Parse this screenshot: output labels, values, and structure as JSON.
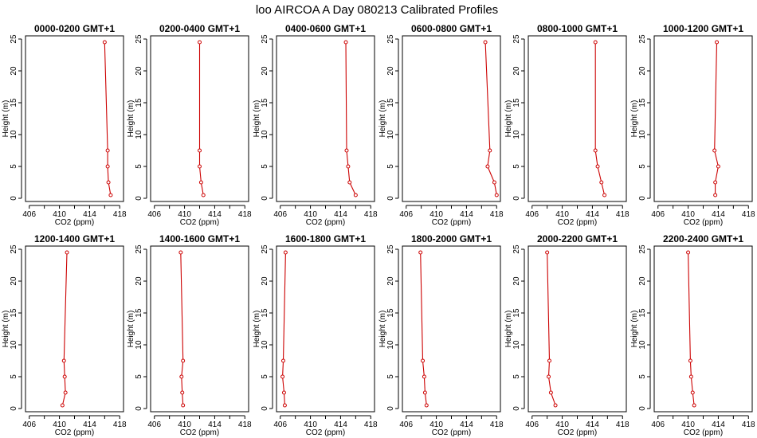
{
  "title": "loo AIRCOA A  Day 080213  Calibrated Profiles",
  "series_color": "#cc0000",
  "chart_data": [
    {
      "type": "line",
      "title": "0000-0200 GMT+1",
      "xlabel": "CO2 (ppm)",
      "ylabel": "Height (m)",
      "xlim": [
        405.5,
        418.5
      ],
      "ylim": [
        -0.5,
        25.5
      ],
      "xticks": [
        406,
        408,
        410,
        412,
        414,
        416,
        418
      ],
      "yticks": [
        0,
        5,
        10,
        15,
        20,
        25
      ],
      "points": [
        {
          "x": 416.8,
          "y": 0.5
        },
        {
          "x": 416.5,
          "y": 2.5
        },
        {
          "x": 416.4,
          "y": 5
        },
        {
          "x": 416.4,
          "y": 7.5
        },
        {
          "x": 416.0,
          "y": 24.5
        }
      ]
    },
    {
      "type": "line",
      "title": "0200-0400 GMT+1",
      "xlabel": "CO2 (ppm)",
      "ylabel": "Height (m)",
      "xlim": [
        405.5,
        418.5
      ],
      "ylim": [
        -0.5,
        25.5
      ],
      "xticks": [
        406,
        408,
        410,
        412,
        414,
        416,
        418
      ],
      "yticks": [
        0,
        5,
        10,
        15,
        20,
        25
      ],
      "points": [
        {
          "x": 412.5,
          "y": 0.5
        },
        {
          "x": 412.2,
          "y": 2.5
        },
        {
          "x": 412.0,
          "y": 5
        },
        {
          "x": 412.0,
          "y": 7.5
        },
        {
          "x": 412.0,
          "y": 24.5
        }
      ]
    },
    {
      "type": "line",
      "title": "0400-0600 GMT+1",
      "xlabel": "CO2 (ppm)",
      "ylabel": "Height (m)",
      "xlim": [
        405.5,
        418.5
      ],
      "ylim": [
        -0.5,
        25.5
      ],
      "xticks": [
        406,
        408,
        410,
        412,
        414,
        416,
        418
      ],
      "yticks": [
        0,
        5,
        10,
        15,
        20,
        25
      ],
      "points": [
        {
          "x": 416.0,
          "y": 0.5
        },
        {
          "x": 415.2,
          "y": 2.5
        },
        {
          "x": 415.0,
          "y": 5
        },
        {
          "x": 414.8,
          "y": 7.5
        },
        {
          "x": 414.7,
          "y": 24.5
        }
      ]
    },
    {
      "type": "line",
      "title": "0600-0800 GMT+1",
      "xlabel": "CO2 (ppm)",
      "ylabel": "Height (m)",
      "xlim": [
        405.5,
        418.5
      ],
      "ylim": [
        -0.5,
        25.5
      ],
      "xticks": [
        406,
        408,
        410,
        412,
        414,
        416,
        418
      ],
      "yticks": [
        0,
        5,
        10,
        15,
        20,
        25
      ],
      "points": [
        {
          "x": 418.0,
          "y": 0.5
        },
        {
          "x": 417.7,
          "y": 2.5
        },
        {
          "x": 416.8,
          "y": 5
        },
        {
          "x": 417.1,
          "y": 7.5
        },
        {
          "x": 416.5,
          "y": 24.5
        }
      ]
    },
    {
      "type": "line",
      "title": "0800-1000 GMT+1",
      "xlabel": "CO2 (ppm)",
      "ylabel": "Height (m)",
      "xlim": [
        405.5,
        418.5
      ],
      "ylim": [
        -0.5,
        25.5
      ],
      "xticks": [
        406,
        408,
        410,
        412,
        414,
        416,
        418
      ],
      "yticks": [
        0,
        5,
        10,
        15,
        20,
        25
      ],
      "points": [
        {
          "x": 415.6,
          "y": 0.5
        },
        {
          "x": 415.2,
          "y": 2.5
        },
        {
          "x": 414.7,
          "y": 5
        },
        {
          "x": 414.4,
          "y": 7.5
        },
        {
          "x": 414.4,
          "y": 24.5
        }
      ]
    },
    {
      "type": "line",
      "title": "1000-1200 GMT+1",
      "xlabel": "CO2 (ppm)",
      "ylabel": "Height (m)",
      "xlim": [
        405.5,
        418.5
      ],
      "ylim": [
        -0.5,
        25.5
      ],
      "xticks": [
        406,
        408,
        410,
        412,
        414,
        416,
        418
      ],
      "yticks": [
        0,
        5,
        10,
        15,
        20,
        25
      ],
      "points": [
        {
          "x": 413.6,
          "y": 0.5
        },
        {
          "x": 413.6,
          "y": 2.5
        },
        {
          "x": 414.0,
          "y": 5
        },
        {
          "x": 413.5,
          "y": 7.5
        },
        {
          "x": 413.8,
          "y": 24.5
        }
      ]
    },
    {
      "type": "line",
      "title": "1200-1400 GMT+1",
      "xlabel": "CO2 (ppm)",
      "ylabel": "Height (m)",
      "xlim": [
        405.5,
        418.5
      ],
      "ylim": [
        -0.5,
        25.5
      ],
      "xticks": [
        406,
        408,
        410,
        412,
        414,
        416,
        418
      ],
      "yticks": [
        0,
        5,
        10,
        15,
        20,
        25
      ],
      "points": [
        {
          "x": 410.4,
          "y": 0.5
        },
        {
          "x": 410.8,
          "y": 2.5
        },
        {
          "x": 410.7,
          "y": 5
        },
        {
          "x": 410.6,
          "y": 7.5
        },
        {
          "x": 411.0,
          "y": 24.5
        }
      ]
    },
    {
      "type": "line",
      "title": "1400-1600 GMT+1",
      "xlabel": "CO2 (ppm)",
      "ylabel": "Height (m)",
      "xlim": [
        405.5,
        418.5
      ],
      "ylim": [
        -0.5,
        25.5
      ],
      "xticks": [
        406,
        408,
        410,
        412,
        414,
        416,
        418
      ],
      "yticks": [
        0,
        5,
        10,
        15,
        20,
        25
      ],
      "points": [
        {
          "x": 409.8,
          "y": 0.5
        },
        {
          "x": 409.7,
          "y": 2.5
        },
        {
          "x": 409.6,
          "y": 5
        },
        {
          "x": 409.8,
          "y": 7.5
        },
        {
          "x": 409.5,
          "y": 24.5
        }
      ]
    },
    {
      "type": "line",
      "title": "1600-1800 GMT+1",
      "xlabel": "CO2 (ppm)",
      "ylabel": "Height (m)",
      "xlim": [
        405.5,
        418.5
      ],
      "ylim": [
        -0.5,
        25.5
      ],
      "xticks": [
        406,
        408,
        410,
        412,
        414,
        416,
        418
      ],
      "yticks": [
        0,
        5,
        10,
        15,
        20,
        25
      ],
      "points": [
        {
          "x": 406.6,
          "y": 0.5
        },
        {
          "x": 406.5,
          "y": 2.5
        },
        {
          "x": 406.3,
          "y": 5
        },
        {
          "x": 406.4,
          "y": 7.5
        },
        {
          "x": 406.7,
          "y": 24.5
        }
      ]
    },
    {
      "type": "line",
      "title": "1800-2000 GMT+1",
      "xlabel": "CO2 (ppm)",
      "ylabel": "Height (m)",
      "xlim": [
        405.5,
        418.5
      ],
      "ylim": [
        -0.5,
        25.5
      ],
      "xticks": [
        406,
        408,
        410,
        412,
        414,
        416,
        418
      ],
      "yticks": [
        0,
        5,
        10,
        15,
        20,
        25
      ],
      "points": [
        {
          "x": 408.7,
          "y": 0.5
        },
        {
          "x": 408.5,
          "y": 2.5
        },
        {
          "x": 408.4,
          "y": 5
        },
        {
          "x": 408.2,
          "y": 7.5
        },
        {
          "x": 407.9,
          "y": 24.5
        }
      ]
    },
    {
      "type": "line",
      "title": "2000-2200 GMT+1",
      "xlabel": "CO2 (ppm)",
      "ylabel": "Height (m)",
      "xlim": [
        405.5,
        418.5
      ],
      "ylim": [
        -0.5,
        25.5
      ],
      "xticks": [
        406,
        408,
        410,
        412,
        414,
        416,
        418
      ],
      "yticks": [
        0,
        5,
        10,
        15,
        20,
        25
      ],
      "points": [
        {
          "x": 409.1,
          "y": 0.5
        },
        {
          "x": 408.5,
          "y": 2.5
        },
        {
          "x": 408.2,
          "y": 5
        },
        {
          "x": 408.3,
          "y": 7.5
        },
        {
          "x": 408.0,
          "y": 24.5
        }
      ]
    },
    {
      "type": "line",
      "title": "2200-2400 GMT+1",
      "xlabel": "CO2 (ppm)",
      "ylabel": "Height (m)",
      "xlim": [
        405.5,
        418.5
      ],
      "ylim": [
        -0.5,
        25.5
      ],
      "xticks": [
        406,
        408,
        410,
        412,
        414,
        416,
        418
      ],
      "yticks": [
        0,
        5,
        10,
        15,
        20,
        25
      ],
      "points": [
        {
          "x": 410.8,
          "y": 0.5
        },
        {
          "x": 410.6,
          "y": 2.5
        },
        {
          "x": 410.4,
          "y": 5
        },
        {
          "x": 410.3,
          "y": 7.5
        },
        {
          "x": 410.0,
          "y": 24.5
        }
      ]
    }
  ]
}
